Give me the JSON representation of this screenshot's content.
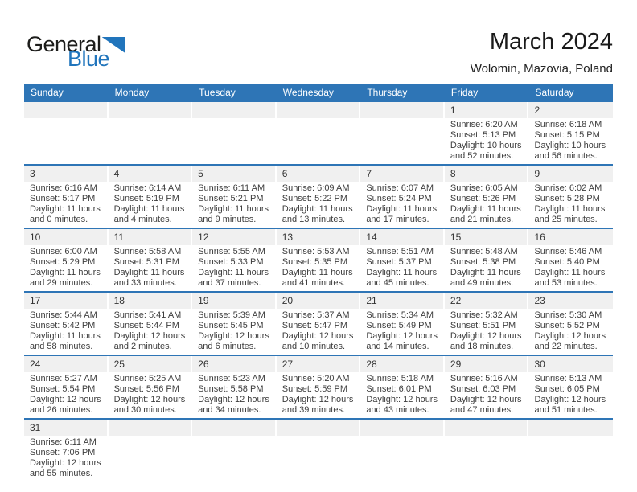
{
  "logo": {
    "text_top": "General",
    "text_bottom": "Blue"
  },
  "title": "March 2024",
  "location": "Wolomin, Mazovia, Poland",
  "weekdays": [
    "Sunday",
    "Monday",
    "Tuesday",
    "Wednesday",
    "Thursday",
    "Friday",
    "Saturday"
  ],
  "colors": {
    "header_bg": "#2E75B6",
    "row_border": "#2E75B6",
    "strip_bg": "#F0F0F0",
    "logo_blue": "#2175BC",
    "title_color": "#1A1A1A"
  },
  "weeks": [
    [
      null,
      null,
      null,
      null,
      null,
      {
        "day": "1",
        "sunrise": "Sunrise: 6:20 AM",
        "sunset": "Sunset: 5:13 PM",
        "daylight": "Daylight: 10 hours and 52 minutes."
      },
      {
        "day": "2",
        "sunrise": "Sunrise: 6:18 AM",
        "sunset": "Sunset: 5:15 PM",
        "daylight": "Daylight: 10 hours and 56 minutes."
      }
    ],
    [
      {
        "day": "3",
        "sunrise": "Sunrise: 6:16 AM",
        "sunset": "Sunset: 5:17 PM",
        "daylight": "Daylight: 11 hours and 0 minutes."
      },
      {
        "day": "4",
        "sunrise": "Sunrise: 6:14 AM",
        "sunset": "Sunset: 5:19 PM",
        "daylight": "Daylight: 11 hours and 4 minutes."
      },
      {
        "day": "5",
        "sunrise": "Sunrise: 6:11 AM",
        "sunset": "Sunset: 5:21 PM",
        "daylight": "Daylight: 11 hours and 9 minutes."
      },
      {
        "day": "6",
        "sunrise": "Sunrise: 6:09 AM",
        "sunset": "Sunset: 5:22 PM",
        "daylight": "Daylight: 11 hours and 13 minutes."
      },
      {
        "day": "7",
        "sunrise": "Sunrise: 6:07 AM",
        "sunset": "Sunset: 5:24 PM",
        "daylight": "Daylight: 11 hours and 17 minutes."
      },
      {
        "day": "8",
        "sunrise": "Sunrise: 6:05 AM",
        "sunset": "Sunset: 5:26 PM",
        "daylight": "Daylight: 11 hours and 21 minutes."
      },
      {
        "day": "9",
        "sunrise": "Sunrise: 6:02 AM",
        "sunset": "Sunset: 5:28 PM",
        "daylight": "Daylight: 11 hours and 25 minutes."
      }
    ],
    [
      {
        "day": "10",
        "sunrise": "Sunrise: 6:00 AM",
        "sunset": "Sunset: 5:29 PM",
        "daylight": "Daylight: 11 hours and 29 minutes."
      },
      {
        "day": "11",
        "sunrise": "Sunrise: 5:58 AM",
        "sunset": "Sunset: 5:31 PM",
        "daylight": "Daylight: 11 hours and 33 minutes."
      },
      {
        "day": "12",
        "sunrise": "Sunrise: 5:55 AM",
        "sunset": "Sunset: 5:33 PM",
        "daylight": "Daylight: 11 hours and 37 minutes."
      },
      {
        "day": "13",
        "sunrise": "Sunrise: 5:53 AM",
        "sunset": "Sunset: 5:35 PM",
        "daylight": "Daylight: 11 hours and 41 minutes."
      },
      {
        "day": "14",
        "sunrise": "Sunrise: 5:51 AM",
        "sunset": "Sunset: 5:37 PM",
        "daylight": "Daylight: 11 hours and 45 minutes."
      },
      {
        "day": "15",
        "sunrise": "Sunrise: 5:48 AM",
        "sunset": "Sunset: 5:38 PM",
        "daylight": "Daylight: 11 hours and 49 minutes."
      },
      {
        "day": "16",
        "sunrise": "Sunrise: 5:46 AM",
        "sunset": "Sunset: 5:40 PM",
        "daylight": "Daylight: 11 hours and 53 minutes."
      }
    ],
    [
      {
        "day": "17",
        "sunrise": "Sunrise: 5:44 AM",
        "sunset": "Sunset: 5:42 PM",
        "daylight": "Daylight: 11 hours and 58 minutes."
      },
      {
        "day": "18",
        "sunrise": "Sunrise: 5:41 AM",
        "sunset": "Sunset: 5:44 PM",
        "daylight": "Daylight: 12 hours and 2 minutes."
      },
      {
        "day": "19",
        "sunrise": "Sunrise: 5:39 AM",
        "sunset": "Sunset: 5:45 PM",
        "daylight": "Daylight: 12 hours and 6 minutes."
      },
      {
        "day": "20",
        "sunrise": "Sunrise: 5:37 AM",
        "sunset": "Sunset: 5:47 PM",
        "daylight": "Daylight: 12 hours and 10 minutes."
      },
      {
        "day": "21",
        "sunrise": "Sunrise: 5:34 AM",
        "sunset": "Sunset: 5:49 PM",
        "daylight": "Daylight: 12 hours and 14 minutes."
      },
      {
        "day": "22",
        "sunrise": "Sunrise: 5:32 AM",
        "sunset": "Sunset: 5:51 PM",
        "daylight": "Daylight: 12 hours and 18 minutes."
      },
      {
        "day": "23",
        "sunrise": "Sunrise: 5:30 AM",
        "sunset": "Sunset: 5:52 PM",
        "daylight": "Daylight: 12 hours and 22 minutes."
      }
    ],
    [
      {
        "day": "24",
        "sunrise": "Sunrise: 5:27 AM",
        "sunset": "Sunset: 5:54 PM",
        "daylight": "Daylight: 12 hours and 26 minutes."
      },
      {
        "day": "25",
        "sunrise": "Sunrise: 5:25 AM",
        "sunset": "Sunset: 5:56 PM",
        "daylight": "Daylight: 12 hours and 30 minutes."
      },
      {
        "day": "26",
        "sunrise": "Sunrise: 5:23 AM",
        "sunset": "Sunset: 5:58 PM",
        "daylight": "Daylight: 12 hours and 34 minutes."
      },
      {
        "day": "27",
        "sunrise": "Sunrise: 5:20 AM",
        "sunset": "Sunset: 5:59 PM",
        "daylight": "Daylight: 12 hours and 39 minutes."
      },
      {
        "day": "28",
        "sunrise": "Sunrise: 5:18 AM",
        "sunset": "Sunset: 6:01 PM",
        "daylight": "Daylight: 12 hours and 43 minutes."
      },
      {
        "day": "29",
        "sunrise": "Sunrise: 5:16 AM",
        "sunset": "Sunset: 6:03 PM",
        "daylight": "Daylight: 12 hours and 47 minutes."
      },
      {
        "day": "30",
        "sunrise": "Sunrise: 5:13 AM",
        "sunset": "Sunset: 6:05 PM",
        "daylight": "Daylight: 12 hours and 51 minutes."
      }
    ],
    [
      {
        "day": "31",
        "sunrise": "Sunrise: 6:11 AM",
        "sunset": "Sunset: 7:06 PM",
        "daylight": "Daylight: 12 hours and 55 minutes."
      },
      null,
      null,
      null,
      null,
      null,
      null
    ]
  ]
}
